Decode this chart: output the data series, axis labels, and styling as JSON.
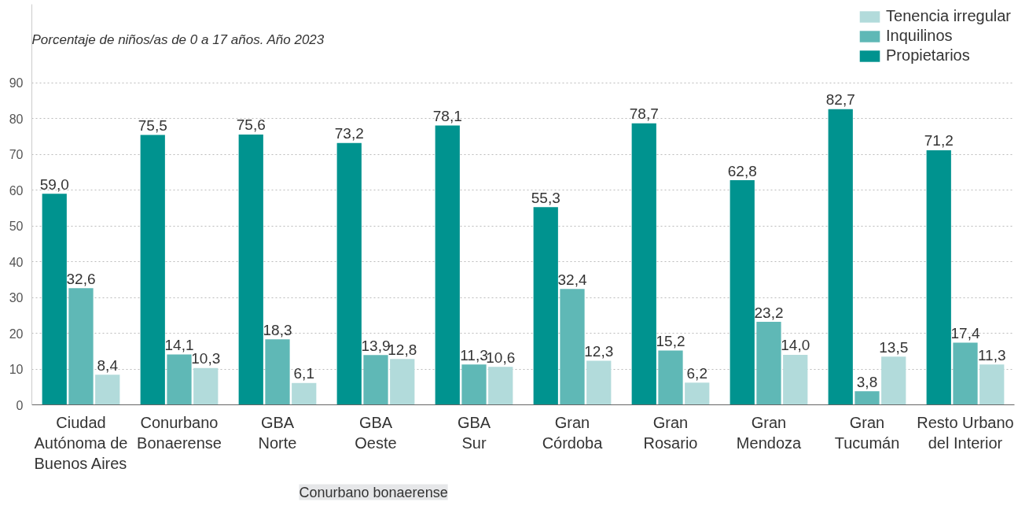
{
  "chart_data": {
    "type": "bar",
    "subtitle": "Porcentaje de niños/as de 0 a 17 años. Año 2023",
    "categories": [
      "Ciudad Autónoma de Buenos Aires",
      "Conurbano Bonaerense",
      "GBA Norte",
      "GBA Oeste",
      "GBA Sur",
      "Gran Córdoba",
      "Gran Rosario",
      "Gran Mendoza",
      "Gran Tucumán",
      "Resto Urbano del Interior"
    ],
    "series": [
      {
        "name": "Propietarios",
        "color": "#00938f",
        "values": [
          59.0,
          75.5,
          75.6,
          73.2,
          78.1,
          55.3,
          78.7,
          62.8,
          82.7,
          71.2
        ],
        "value_labels": [
          "59,0",
          "75,5",
          "75,6",
          "73,2",
          "78,1",
          "55,3",
          "78,7",
          "62,8",
          "82,7",
          "71,2"
        ]
      },
      {
        "name": "Inquilinos",
        "color": "#5fb8b6",
        "values": [
          32.6,
          14.1,
          18.3,
          13.9,
          11.3,
          32.4,
          15.2,
          23.2,
          3.8,
          17.4
        ],
        "value_labels": [
          "32,6",
          "14,1",
          "18,3",
          "13,9",
          "11,3",
          "32,4",
          "15,2",
          "23,2",
          "3,8",
          "17,4"
        ]
      },
      {
        "name": "Tenencia irregular",
        "color": "#b2dbdb",
        "values": [
          8.4,
          10.3,
          6.1,
          12.8,
          10.6,
          12.3,
          6.2,
          14.0,
          13.5,
          11.3
        ],
        "value_labels": [
          "8,4",
          "10,3",
          "6,1",
          "12,8",
          "10,6",
          "12,3",
          "6,2",
          "14,0",
          "13,5",
          "11,3"
        ]
      }
    ],
    "ylim": [
      0,
      112
    ],
    "yticks": [
      0,
      10,
      20,
      30,
      40,
      50,
      60,
      70,
      80,
      90
    ],
    "grid": "y",
    "legend": "top right",
    "annotations": [
      "Conurbano bonaerense"
    ]
  }
}
